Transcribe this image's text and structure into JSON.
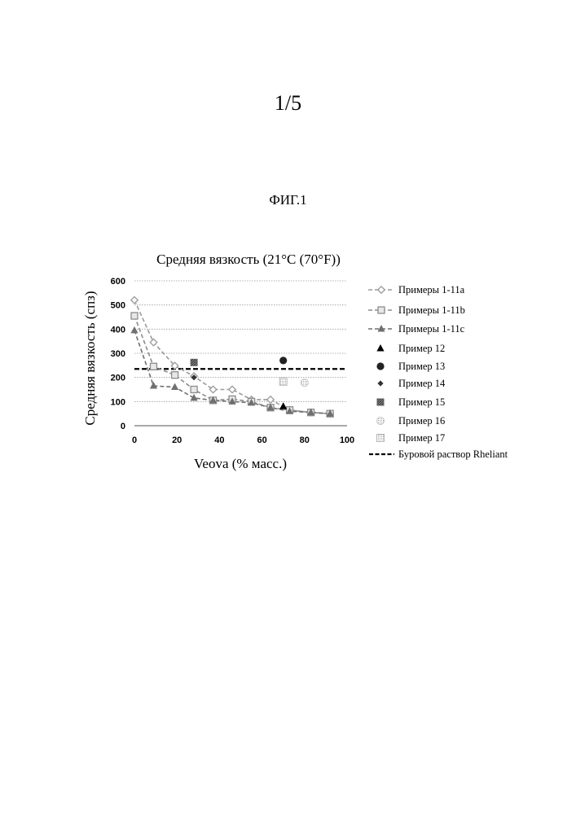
{
  "page": {
    "number": "1/5",
    "figure_label": "ФИГ.1"
  },
  "chart_data": {
    "type": "scatter",
    "title": "Средняя вязкость (21°C (70°F))",
    "xlabel": "Veova (% масс.)",
    "ylabel": "Средняя вязкость (спз)",
    "xlim": [
      0,
      100
    ],
    "ylim": [
      0,
      600
    ],
    "x_ticks": [
      0,
      20,
      40,
      60,
      80,
      100
    ],
    "y_ticks": [
      0,
      100,
      200,
      300,
      400,
      500,
      600
    ],
    "grid": "horizontal",
    "legend_position": "right",
    "series": [
      {
        "name": "Примеры 1-11a",
        "marker": "diamond-open",
        "line": "dash",
        "color": "#9a9a9a",
        "x": [
          0,
          9,
          19,
          28,
          37,
          46,
          55,
          64,
          73,
          83,
          92
        ],
        "y": [
          520,
          345,
          248,
          205,
          150,
          150,
          108,
          108,
          65,
          55,
          50
        ]
      },
      {
        "name": "Примеры 1-11b",
        "marker": "square-open",
        "line": "dash",
        "color": "#8c8c8c",
        "x": [
          0,
          9,
          19,
          28,
          37,
          46,
          55,
          64,
          73,
          83,
          92
        ],
        "y": [
          455,
          245,
          210,
          150,
          105,
          110,
          100,
          75,
          65,
          55,
          50
        ]
      },
      {
        "name": "Примеры 1-11c",
        "marker": "triangle",
        "line": "dash",
        "color": "#6f6f6f",
        "x": [
          0,
          9,
          19,
          28,
          37,
          46,
          55,
          64,
          73,
          83,
          92
        ],
        "y": [
          395,
          165,
          160,
          115,
          105,
          100,
          95,
          75,
          60,
          55,
          50
        ]
      },
      {
        "name": "Пример 12",
        "marker": "triangle-solid",
        "color": "#000000",
        "x": [
          70
        ],
        "y": [
          80
        ]
      },
      {
        "name": "Пример 13",
        "marker": "circle-solid",
        "color": "#222222",
        "x": [
          70
        ],
        "y": [
          270
        ]
      },
      {
        "name": "Пример 14",
        "marker": "diamond-solid",
        "color": "#333333",
        "x": [
          28
        ],
        "y": [
          200
        ]
      },
      {
        "name": "Пример 15",
        "marker": "square-hatch",
        "color": "#555555",
        "x": [
          28
        ],
        "y": [
          262
        ]
      },
      {
        "name": "Пример 16",
        "marker": "circle-light",
        "color": "#c4c4c4",
        "x": [
          80
        ],
        "y": [
          178
        ]
      },
      {
        "name": "Пример 17",
        "marker": "square-light",
        "color": "#b6b6b6",
        "x": [
          70
        ],
        "y": [
          183
        ]
      }
    ],
    "reference_lines": [
      {
        "name": "Буровой раствор Rheliant",
        "y": 235,
        "style": "dash-thick",
        "color": "#000000"
      }
    ]
  }
}
